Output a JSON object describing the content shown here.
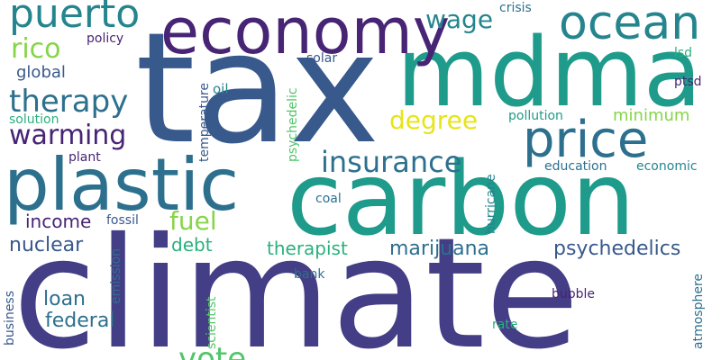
{
  "palette": {
    "dark_purple": "#482475",
    "indigo": "#433e85",
    "slate_blue": "#38598c",
    "steel_blue": "#2d708e",
    "teal_blue": "#25858e",
    "teal": "#1e9b8a",
    "sea_green": "#2ab07f",
    "green": "#52c569",
    "lime": "#86d549",
    "yellow": "#c2df23",
    "bright_yellow": "#e7e419"
  },
  "words": {
    "climate": "climate",
    "tax": "tax",
    "carbon": "carbon",
    "mdma": "mdma",
    "plastic": "plastic",
    "economy": "economy",
    "price": "price",
    "ocean": "ocean",
    "puerto": "puerto",
    "therapy": "therapy",
    "insurance": "insurance",
    "warming": "warming",
    "rico": "rico",
    "degree": "degree",
    "wage": "wage",
    "fuel": "fuel",
    "vote": "vote",
    "psychedelics": "psychedelics",
    "marijuana": "marijuana",
    "nuclear": "nuclear",
    "therapist": "therapist",
    "income": "income",
    "federal": "federal",
    "loan": "loan",
    "minimum": "minimum",
    "global": "global",
    "debt": "debt",
    "policy": "policy",
    "crisis": "crisis",
    "solar": "solar",
    "lsd": "lsd",
    "ptsd": "ptsd",
    "oil": "oil",
    "pollution": "pollution",
    "solution": "solution",
    "plant": "plant",
    "education": "education",
    "economic": "economic",
    "coal": "coal",
    "fossil": "fossil",
    "bank": "bank",
    "bubble": "bubble",
    "rate": "rate",
    "temperature": "temperature",
    "psychedelic": "psychedelic",
    "hurricane": "hurricane",
    "emission": "emission",
    "scientist": "scientist",
    "business": "business",
    "atmosphere": "atmosphere"
  }
}
